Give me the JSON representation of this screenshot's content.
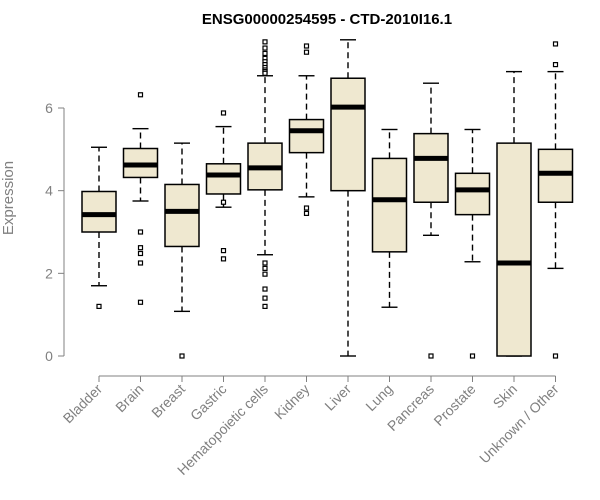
{
  "chart_data": {
    "type": "box",
    "title": "ENSG00000254595 - CTD-2010I16.1",
    "xlabel": "",
    "ylabel": "Expression",
    "ylim": [
      0,
      7.6
    ],
    "yticks": [
      0,
      2,
      4,
      6
    ],
    "grid": false,
    "box_fill": "#efe8d0",
    "stroke_color": "#000000",
    "axis_color": "#808080",
    "categories": [
      "Bladder",
      "Brain",
      "Breast",
      "Gastric",
      "Hematopoietic cells",
      "Kidney",
      "Liver",
      "Lung",
      "Pancreas",
      "Prostate",
      "Skin",
      "Unknown / Other"
    ],
    "boxes": [
      {
        "whisker_low": 1.7,
        "q1": 3.0,
        "median": 3.42,
        "q3": 3.98,
        "whisker_high": 5.05,
        "outliers": [
          1.2
        ]
      },
      {
        "whisker_low": 3.75,
        "q1": 4.32,
        "median": 4.62,
        "q3": 5.02,
        "whisker_high": 5.5,
        "outliers": [
          6.32,
          3.0,
          2.62,
          2.48,
          2.25,
          1.3
        ]
      },
      {
        "whisker_low": 1.08,
        "q1": 2.65,
        "median": 3.5,
        "q3": 4.15,
        "whisker_high": 5.15,
        "outliers": [
          0.0
        ]
      },
      {
        "whisker_low": 3.6,
        "q1": 3.92,
        "median": 4.38,
        "q3": 4.65,
        "whisker_high": 5.55,
        "outliers": [
          5.88,
          3.72,
          2.55,
          2.35
        ]
      },
      {
        "whisker_low": 2.45,
        "q1": 4.02,
        "median": 4.55,
        "q3": 5.15,
        "whisker_high": 6.78,
        "outliers": [
          7.6,
          7.45,
          7.32,
          7.2,
          7.12,
          7.05,
          6.98,
          6.92,
          6.88,
          6.84,
          2.25,
          2.12,
          1.98,
          1.62,
          1.4,
          1.2
        ]
      },
      {
        "whisker_low": 3.85,
        "q1": 4.92,
        "median": 5.45,
        "q3": 5.72,
        "whisker_high": 6.78,
        "outliers": [
          7.5,
          7.35,
          3.58,
          3.45
        ]
      },
      {
        "whisker_low": 0.0,
        "q1": 4.0,
        "median": 6.02,
        "q3": 6.72,
        "whisker_high": 7.65,
        "outliers": []
      },
      {
        "whisker_low": 1.18,
        "q1": 2.52,
        "median": 3.78,
        "q3": 4.78,
        "whisker_high": 5.48,
        "outliers": []
      },
      {
        "whisker_low": 2.92,
        "q1": 3.72,
        "median": 4.78,
        "q3": 5.38,
        "whisker_high": 6.6,
        "outliers": [
          0.0
        ]
      },
      {
        "whisker_low": 2.28,
        "q1": 3.42,
        "median": 4.02,
        "q3": 4.42,
        "whisker_high": 5.48,
        "outliers": [
          0.0
        ]
      },
      {
        "whisker_low": 0.0,
        "q1": 0.0,
        "median": 2.25,
        "q3": 5.15,
        "whisker_high": 6.88,
        "outliers": []
      },
      {
        "whisker_low": 2.12,
        "q1": 3.72,
        "median": 4.42,
        "q3": 5.0,
        "whisker_high": 6.88,
        "outliers": [
          7.55,
          7.05,
          0.0
        ]
      }
    ]
  }
}
